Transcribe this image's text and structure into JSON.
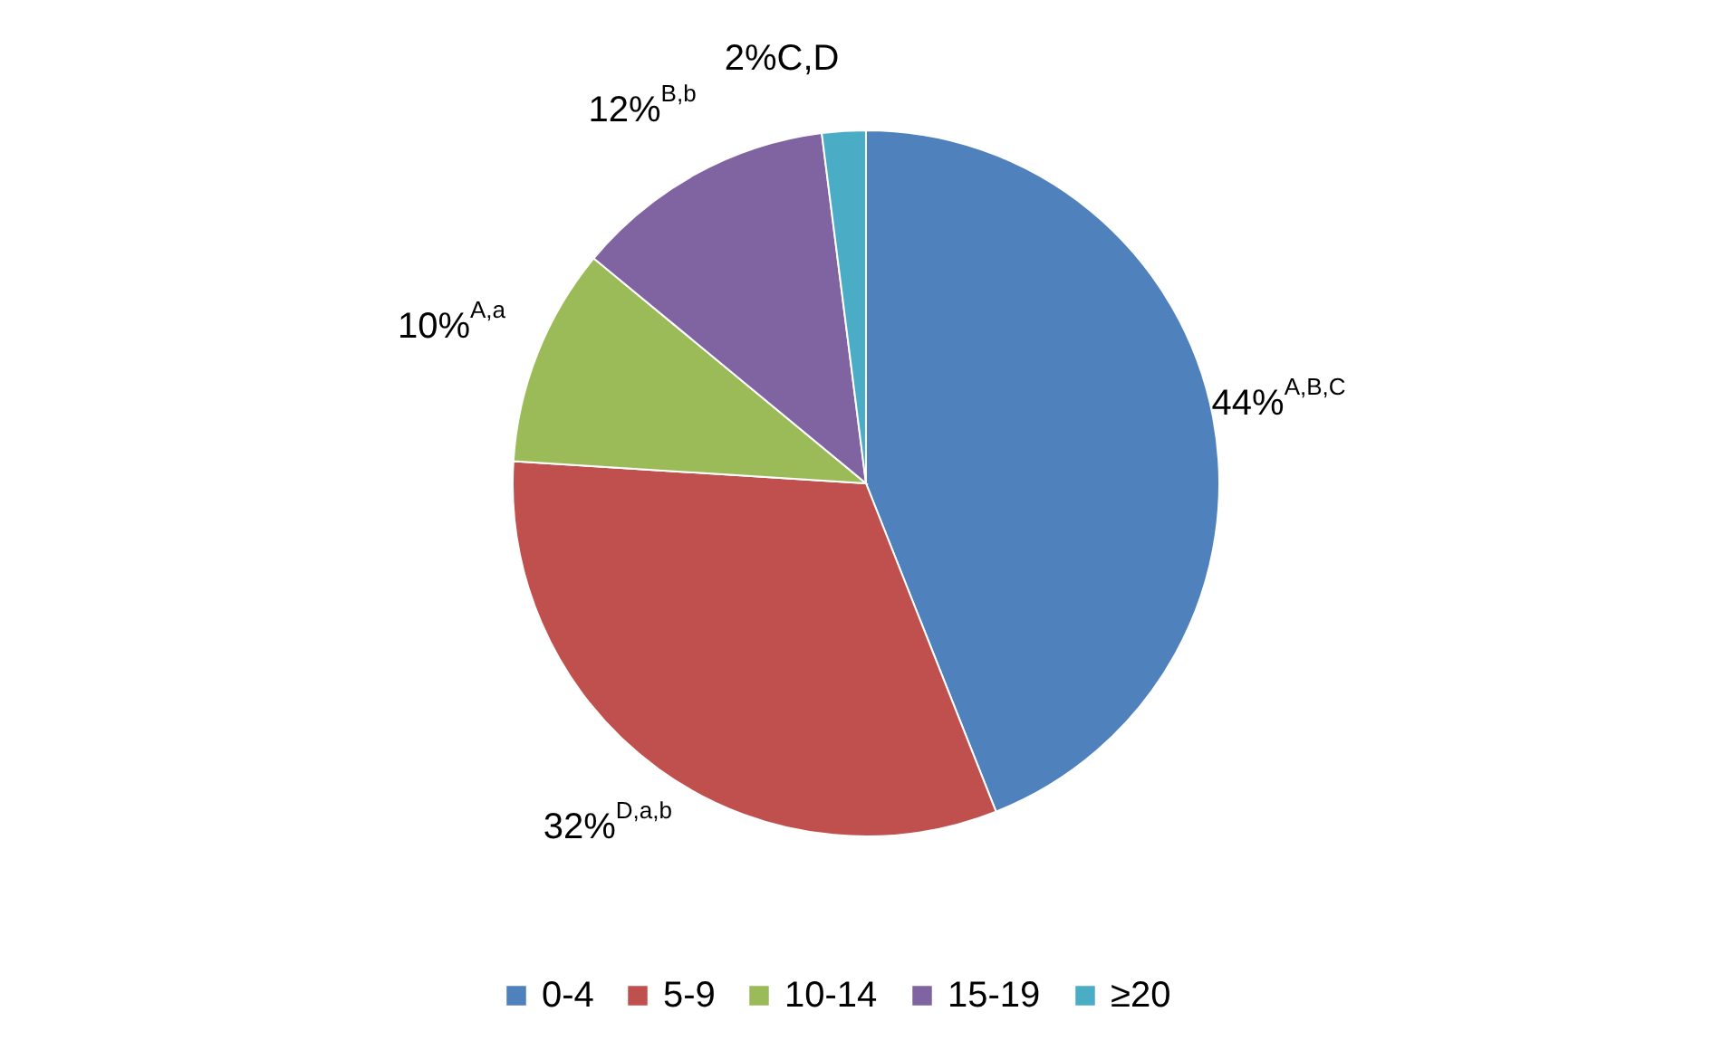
{
  "chart_data": {
    "type": "pie",
    "categories": [
      "0-4",
      "5-9",
      "10-14",
      "15-19",
      "≥20"
    ],
    "values": [
      44,
      32,
      10,
      12,
      2
    ],
    "colors": [
      "#4f81bd",
      "#c0504d",
      "#9bbb59",
      "#8064a2",
      "#4bacc6"
    ],
    "value_labels": [
      "44%$^{A,B,C}$",
      "32%$^{D,a,b}$",
      "10%$^{A,a}$",
      "12%$^{B,b}$",
      "2%C,D"
    ],
    "legend": "bottom"
  }
}
